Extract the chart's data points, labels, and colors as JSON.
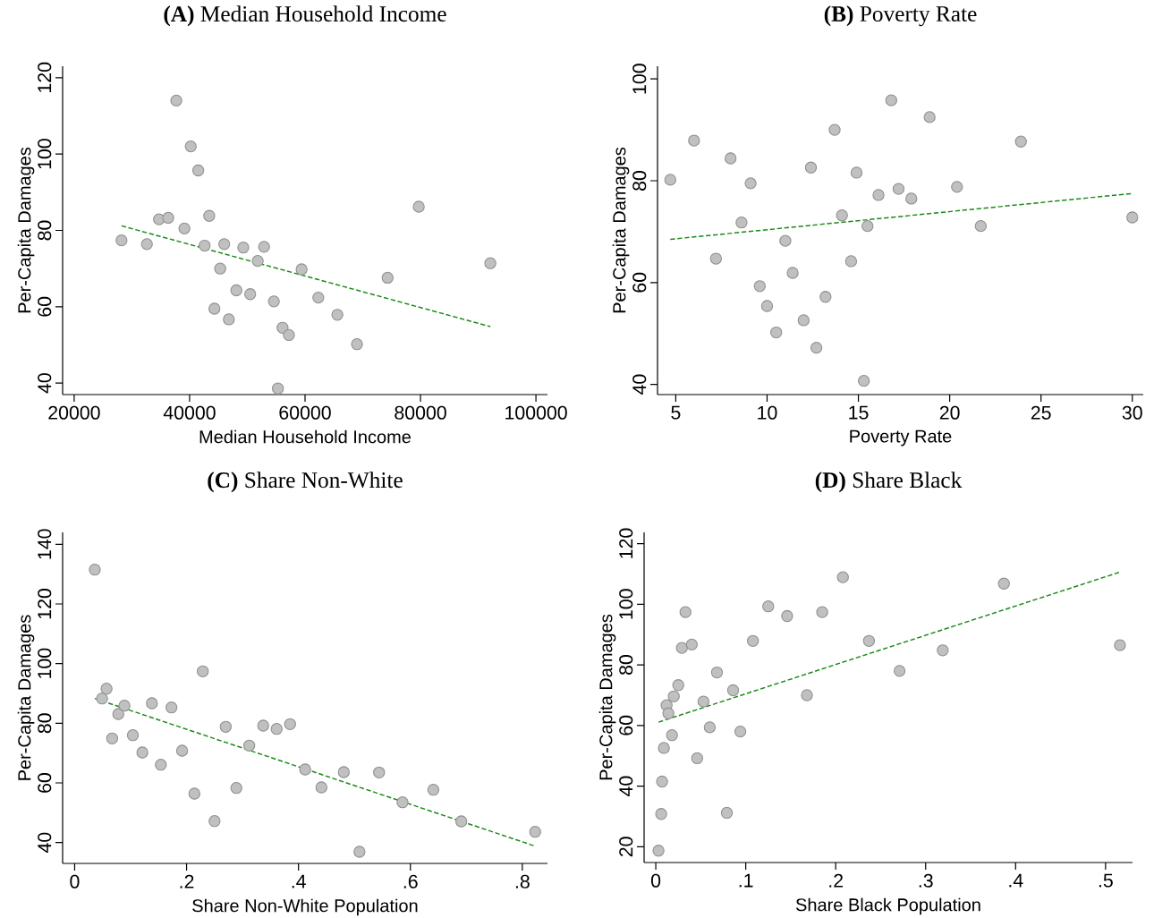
{
  "chart_data": [
    {
      "type": "scatter",
      "title": "**(A)** Median Household Income",
      "xlabel": "Median Household Income",
      "ylabel": "Per-Capita Damages",
      "xlim": [
        18000,
        102000
      ],
      "ylim": [
        37,
        123
      ],
      "xticks": [
        20000,
        40000,
        60000,
        80000,
        100000
      ],
      "yticks": [
        40,
        60,
        80,
        100,
        120
      ],
      "series": [
        {
          "color": "#c0c0c0",
          "marker": "circle",
          "x": [
            28200,
            32600,
            34700,
            36300,
            37700,
            39100,
            40200,
            41500,
            42600,
            43400,
            44300,
            45300,
            46000,
            46800,
            48100,
            49300,
            50500,
            51800,
            52900,
            54600,
            55300,
            56100,
            57200,
            59400,
            62300,
            65600,
            69000,
            74300,
            79700,
            92100
          ],
          "values": [
            77.4,
            76.4,
            82.9,
            83.3,
            114,
            80.5,
            102,
            95.7,
            76,
            83.8,
            59.5,
            70,
            76.4,
            56.7,
            64.3,
            75.5,
            63.3,
            72,
            75.7,
            61.4,
            38.6,
            54.5,
            52.6,
            69.8,
            62.4,
            57.9,
            50.2,
            67.6,
            86.2,
            71.4
          ]
        },
        {
          "type": "line",
          "color": "#1a8a1a",
          "marker": "none",
          "line_style": "dashed",
          "x": [
            28200,
            92100
          ],
          "values": [
            81.2,
            54.8
          ]
        }
      ]
    },
    {
      "type": "scatter",
      "title": "**(B)** Poverty Rate",
      "xlabel": "Poverty Rate",
      "ylabel": "Per-Capita Damages",
      "xlim": [
        4.0,
        30.6
      ],
      "ylim": [
        38,
        102.5
      ],
      "xticks": [
        5,
        10,
        15,
        20,
        25,
        30
      ],
      "yticks": [
        40,
        60,
        80,
        100
      ],
      "series": [
        {
          "color": "#c0c0c0",
          "marker": "circle",
          "x": [
            4.7,
            6.0,
            7.2,
            8.0,
            8.6,
            9.1,
            9.6,
            10.0,
            10.5,
            11.0,
            11.4,
            12.0,
            12.4,
            12.7,
            13.2,
            13.7,
            14.1,
            14.6,
            14.9,
            15.3,
            15.5,
            16.1,
            16.8,
            17.2,
            17.9,
            18.9,
            20.4,
            21.7,
            23.9,
            30.0
          ],
          "values": [
            80.2,
            87.9,
            64.7,
            84.4,
            71.8,
            79.5,
            59.3,
            55.4,
            50.2,
            68.2,
            61.9,
            52.6,
            82.6,
            47.2,
            57.2,
            90,
            73.2,
            64.2,
            81.6,
            40.7,
            71.1,
            77.2,
            95.8,
            78.4,
            76.5,
            92.5,
            78.8,
            71.1,
            87.7,
            72.8
          ]
        },
        {
          "type": "line",
          "color": "#1a8a1a",
          "marker": "none",
          "line_style": "dashed",
          "x": [
            4.7,
            30.0
          ],
          "values": [
            68.5,
            77.5
          ]
        }
      ]
    },
    {
      "type": "scatter",
      "title": "**(C)** Share Non-White",
      "xlabel": "Share Non-White Population",
      "ylabel": "Per-Capita Damages",
      "xlim": [
        -0.0215,
        0.845
      ],
      "ylim": [
        33,
        144
      ],
      "xticks": [
        0,
        {
          "value": 0.2,
          "label": ".2"
        },
        {
          "value": 0.4,
          "label": ".4"
        },
        {
          "value": 0.6,
          "label": ".6"
        },
        {
          "value": 0.8,
          "label": ".8"
        }
      ],
      "yticks": [
        40,
        60,
        80,
        100,
        120,
        140
      ],
      "series": [
        {
          "color": "#c0c0c0",
          "marker": "circle",
          "x": [
            0.036,
            0.049,
            0.057,
            0.067,
            0.078,
            0.089,
            0.104,
            0.121,
            0.138,
            0.154,
            0.173,
            0.192,
            0.214,
            0.229,
            0.25,
            0.27,
            0.289,
            0.312,
            0.337,
            0.361,
            0.385,
            0.412,
            0.441,
            0.481,
            0.509,
            0.544,
            0.586,
            0.641,
            0.691,
            0.823
          ],
          "values": [
            131.5,
            88.3,
            91.6,
            74.9,
            83.1,
            85.9,
            76,
            70.2,
            86.7,
            66.1,
            85.3,
            70.8,
            56.4,
            97.4,
            47.2,
            78.8,
            58.3,
            72.5,
            79.2,
            78.1,
            79.7,
            64.5,
            58.5,
            63.6,
            36.9,
            63.5,
            53.5,
            57.7,
            47.1,
            43.6
          ]
        },
        {
          "type": "line",
          "color": "#1a8a1a",
          "marker": "none",
          "line_style": "dashed",
          "x": [
            0.036,
            0.823
          ],
          "values": [
            88.3,
            38.8
          ]
        }
      ]
    },
    {
      "type": "scatter",
      "title": "**(D)** Share Black",
      "xlabel": "Share Black Population",
      "ylabel": "Per-Capita Damages",
      "xlim": [
        -0.013,
        0.53
      ],
      "ylim": [
        14.8,
        123.7
      ],
      "xticks": [
        0,
        {
          "value": 0.1,
          "label": ".1"
        },
        {
          "value": 0.2,
          "label": ".2"
        },
        {
          "value": 0.3,
          "label": ".3"
        },
        {
          "value": 0.4,
          "label": ".4"
        },
        {
          "value": 0.5,
          "label": ".5"
        }
      ],
      "yticks": [
        20,
        40,
        60,
        80,
        100,
        120
      ],
      "series": [
        {
          "color": "#c0c0c0",
          "marker": "circle",
          "x": [
            0.003,
            0.006,
            0.007,
            0.009,
            0.012,
            0.014,
            0.018,
            0.02,
            0.025,
            0.029,
            0.033,
            0.04,
            0.046,
            0.053,
            0.06,
            0.068,
            0.079,
            0.086,
            0.094,
            0.108,
            0.125,
            0.146,
            0.168,
            0.185,
            0.208,
            0.237,
            0.271,
            0.319,
            0.387,
            0.516
          ],
          "values": [
            18.7,
            30.8,
            41.5,
            52.6,
            66.7,
            64,
            56.8,
            69.6,
            73.3,
            85.6,
            97.4,
            86.7,
            49.2,
            67.9,
            59.4,
            77.5,
            31.2,
            71.6,
            58,
            87.9,
            99.3,
            96.1,
            70,
            97.4,
            108.9,
            87.9,
            78,
            84.8,
            106.8,
            86.5
          ]
        },
        {
          "type": "line",
          "color": "#1a8a1a",
          "marker": "none",
          "line_style": "dashed",
          "x": [
            0.003,
            0.516
          ],
          "values": [
            61.1,
            110.6
          ]
        }
      ]
    }
  ]
}
